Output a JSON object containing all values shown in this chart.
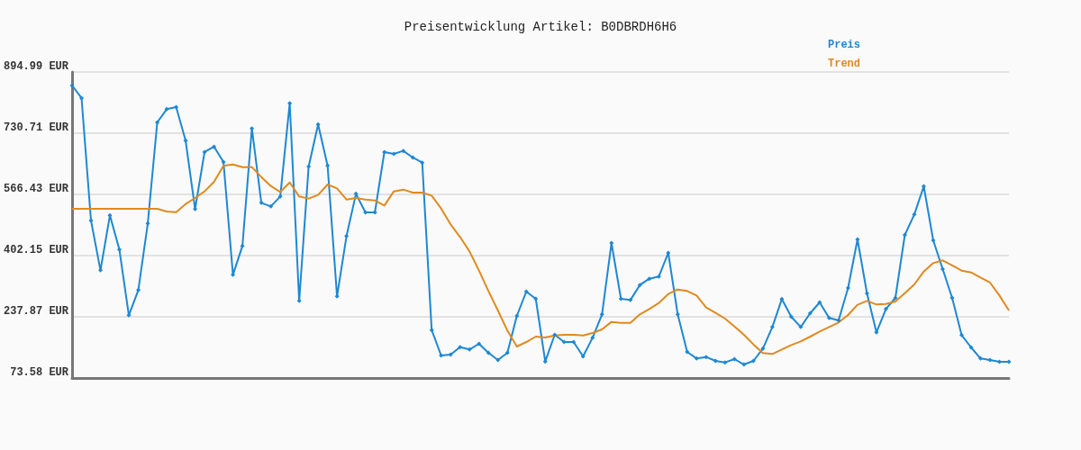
{
  "chart_data": {
    "type": "line",
    "title": "Preisentwicklung Artikel: B0DBRDH6H6",
    "categories": [
      null,
      null,
      null,
      null,
      null,
      null,
      null,
      null,
      null,
      null,
      null,
      null,
      null,
      null,
      null,
      null,
      null,
      null,
      null,
      null,
      null,
      null,
      null,
      null,
      null,
      null,
      null,
      null,
      null,
      null,
      null,
      null,
      null,
      null,
      null,
      null,
      null,
      null,
      null,
      null,
      null,
      null,
      null,
      null,
      null,
      null,
      null,
      null,
      null,
      null,
      null,
      null,
      null,
      null,
      null,
      null,
      null,
      null,
      null,
      null,
      null,
      null,
      null,
      null,
      null,
      null,
      null,
      null,
      null,
      null,
      null,
      null,
      null,
      null,
      null,
      null,
      null,
      null,
      null,
      null,
      null,
      null,
      null,
      null,
      null,
      null,
      null,
      null,
      null,
      null,
      null,
      null,
      null,
      null,
      null,
      null,
      null,
      null,
      null,
      null
    ],
    "series": [
      {
        "name": "Preis",
        "color": "#1e88d2",
        "marker": "diamond",
        "values": [
          858.8,
          825.0,
          496.4,
          362.7,
          510.0,
          418.3,
          241.9,
          309.5,
          488.3,
          759.7,
          795.1,
          800.8,
          710.6,
          527.0,
          680.0,
          694.5,
          653.4,
          350.6,
          427.9,
          743.6,
          543.9,
          534.2,
          560.8,
          811.2,
          280.5,
          641.3,
          754.1,
          643.7,
          292.6,
          454.5,
          568.0,
          518.1,
          518.1,
          680.0,
          675.2,
          683.2,
          665.5,
          651.8,
          202.4,
          134.0,
          136.4,
          156.5,
          150.1,
          165.4,
          141.2,
          121.9,
          141.2,
          240.3,
          305.5,
          286.2,
          117.9,
          189.6,
          170.2,
          170.2,
          131.6,
          181.5,
          244.3,
          435.9,
          286.2,
          282.9,
          323.2,
          340.1,
          345.8,
          409.4,
          244.3,
          143.6,
          125.9,
          129.9,
          119.5,
          115.5,
          124.3,
          109.8,
          119.5,
          152.5,
          210.5,
          285.4,
          237.9,
          210.5,
          247.5,
          276.5,
          234.7,
          228.2,
          315.2,
          445.6,
          300.7,
          196.0,
          258.8,
          288.6,
          457.7,
          512.5,
          588.2,
          443.2,
          366.0,
          288.6,
          188.7,
          155.7,
          125.9,
          121.9,
          117.1,
          117.1
        ]
      },
      {
        "name": "Trend",
        "color": "#e08a1e",
        "marker": "none",
        "values": [
          527.8,
          527.8,
          527.8,
          527.8,
          527.8,
          527.8,
          527.8,
          527.8,
          527.8,
          527.8,
          520.5,
          518.9,
          540.7,
          556.8,
          574.5,
          600.3,
          642.9,
          646.9,
          639.7,
          639.7,
          613.1,
          589.0,
          572.9,
          598.6,
          560.8,
          555.2,
          564.8,
          593.0,
          582.5,
          552.7,
          556.8,
          552.7,
          550.3,
          536.6,
          574.5,
          579.3,
          571.3,
          571.3,
          563.2,
          528.6,
          485.9,
          452.1,
          413.4,
          361.9,
          307.1,
          254.8,
          200.8,
          158.1,
          170.2,
          184.7,
          182.3,
          187.9,
          189.6,
          189.6,
          187.9,
          194.4,
          204.0,
          224.2,
          221.8,
          221.8,
          244.3,
          258.8,
          274.9,
          299.1,
          311.1,
          307.1,
          295.0,
          262.8,
          248.3,
          233.0,
          212.1,
          189.6,
          163.8,
          140.4,
          138.0,
          150.1,
          162.2,
          171.8,
          184.7,
          198.4,
          210.5,
          222.6,
          242.7,
          270.1,
          280.5,
          270.9,
          272.5,
          279.0,
          301.5,
          324.8,
          359.5,
          382.0,
          389.3,
          375.6,
          361.9,
          357.1,
          343.4,
          329.7,
          295.0,
          254.8
        ]
      }
    ],
    "ylim": [
      73.58,
      894.99
    ],
    "yticks": [
      {
        "value": 73.58,
        "label": "73.58 EUR"
      },
      {
        "value": 237.87,
        "label": "237.87 EUR"
      },
      {
        "value": 402.15,
        "label": "402.15 EUR"
      },
      {
        "value": 566.43,
        "label": "566.43 EUR"
      },
      {
        "value": 730.71,
        "label": "730.71 EUR"
      },
      {
        "value": 894.99,
        "label": "894.99 EUR"
      }
    ],
    "tick_labels": "y",
    "grid": "y",
    "legend": "top right",
    "line_style": "solid"
  }
}
